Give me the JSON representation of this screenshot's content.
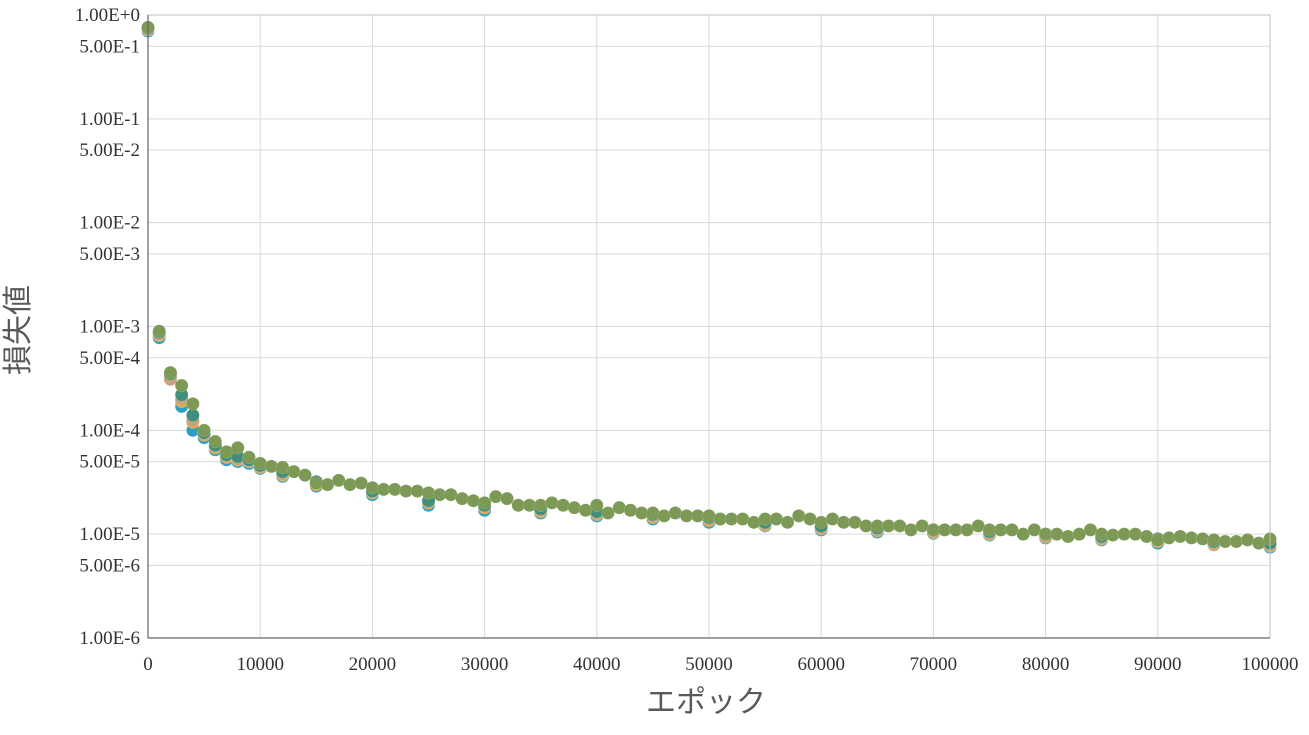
{
  "chart_data": {
    "type": "scatter",
    "title": "",
    "xlabel": "エポック",
    "ylabel": "損失値",
    "xlim": [
      0,
      100000
    ],
    "ylim": [
      1e-06,
      1
    ],
    "yscale": "log",
    "grid": true,
    "x_ticks": [
      "0",
      "10000",
      "20000",
      "30000",
      "40000",
      "50000",
      "60000",
      "70000",
      "80000",
      "90000",
      "100000"
    ],
    "x_tick_values": [
      0,
      10000,
      20000,
      30000,
      40000,
      50000,
      60000,
      70000,
      80000,
      90000,
      100000
    ],
    "y_ticks": [
      "1.00E+0",
      "5.00E-1",
      "1.00E-1",
      "5.00E-2",
      "1.00E-2",
      "5.00E-3",
      "1.00E-3",
      "5.00E-4",
      "1.00E-4",
      "5.00E-5",
      "1.00E-5",
      "5.00E-6",
      "1.00E-6"
    ],
    "y_tick_values": [
      1,
      0.5,
      0.1,
      0.05,
      0.01,
      0.005,
      0.001,
      0.0005,
      0.0001,
      5e-05,
      1e-05,
      5e-06,
      1e-06
    ],
    "series": [
      {
        "color": "#2e9fc4",
        "x": [
          0,
          1000,
          2000,
          3000,
          4000,
          5000,
          6000,
          7000,
          8000,
          9000,
          10000,
          12000,
          15000,
          20000,
          25000,
          30000,
          35000,
          40000,
          45000,
          50000,
          55000,
          60000,
          65000,
          70000,
          75000,
          80000,
          85000,
          90000,
          95000,
          100000
        ],
        "y": [
          0.7,
          0.00078,
          0.00032,
          0.00017,
          0.0001,
          8.5e-05,
          6.5e-05,
          5.2e-05,
          5e-05,
          4.8e-05,
          4.3e-05,
          3.6e-05,
          2.9e-05,
          2.4e-05,
          1.9e-05,
          1.7e-05,
          1.6e-05,
          1.5e-05,
          1.4e-05,
          1.3e-05,
          1.2e-05,
          1.1e-05,
          1.05e-05,
          1.02e-05,
          9.8e-06,
          9.2e-06,
          8.8e-06,
          8.2e-06,
          7.9e-06,
          7.5e-06
        ]
      },
      {
        "color": "#e7a43a",
        "x": [
          0,
          1000,
          2000,
          3000,
          4000,
          5000,
          6000,
          7000,
          8000,
          9000,
          10000,
          12000,
          15000,
          20000,
          25000,
          30000,
          35000,
          40000,
          45000,
          50000,
          55000,
          60000,
          65000,
          70000,
          75000,
          80000,
          85000,
          90000,
          95000,
          100000
        ],
        "y": [
          0.72,
          0.00082,
          0.00033,
          0.00019,
          0.00012,
          9e-05,
          6.8e-05,
          5.5e-05,
          5.2e-05,
          5e-05,
          4.4e-05,
          3.7e-05,
          3e-05,
          2.5e-05,
          2e-05,
          1.8e-05,
          1.65e-05,
          1.55e-05,
          1.45e-05,
          1.35e-05,
          1.22e-05,
          1.13e-05,
          1.08e-05,
          1.04e-05,
          1e-05,
          9.4e-06,
          9e-06,
          8.5e-06,
          8e-06,
          7.7e-06
        ]
      },
      {
        "color": "#c7a27a",
        "x": [
          0,
          1000,
          2000,
          3000,
          4000,
          5000,
          6000,
          7000,
          8000,
          9000,
          10000,
          12000,
          15000,
          20000,
          25000,
          30000,
          35000,
          40000,
          45000,
          50000,
          55000,
          60000,
          65000,
          70000,
          75000,
          80000,
          85000,
          90000,
          95000,
          100000
        ],
        "y": [
          0.73,
          0.00084,
          0.00031,
          0.0002,
          0.000125,
          9.2e-05,
          7e-05,
          5.7e-05,
          5.3e-05,
          5.1e-05,
          4.5e-05,
          3.8e-05,
          3.1e-05,
          2.55e-05,
          2.05e-05,
          1.85e-05,
          1.7e-05,
          1.6e-05,
          1.5e-05,
          1.4e-05,
          1.25e-05,
          1.15e-05,
          1.1e-05,
          1.06e-05,
          1.02e-05,
          9.6e-06,
          9.2e-06,
          8.7e-06,
          8.2e-06,
          7.9e-06
        ]
      },
      {
        "color": "#3f8f7a",
        "x": [
          0,
          1000,
          2000,
          3000,
          4000,
          5000,
          6000,
          7000,
          8000,
          9000,
          10000,
          12000,
          15000,
          20000,
          25000,
          30000,
          35000,
          40000,
          45000,
          50000,
          55000,
          60000,
          65000,
          70000,
          75000,
          80000,
          85000,
          90000,
          95000,
          100000
        ],
        "y": [
          0.75,
          0.00088,
          0.00035,
          0.00022,
          0.00014,
          9.5e-05,
          7.2e-05,
          5.8e-05,
          5.6e-05,
          5.2e-05,
          4.6e-05,
          4e-05,
          3.2e-05,
          2.6e-05,
          2.1e-05,
          1.9e-05,
          1.75e-05,
          1.65e-05,
          1.55e-05,
          1.45e-05,
          1.3e-05,
          1.2e-05,
          1.15e-05,
          1.1e-05,
          1.06e-05,
          1e-05,
          9.5e-06,
          9e-06,
          8.5e-06,
          8.2e-06
        ]
      },
      {
        "color": "#7c9a55",
        "x": [
          0,
          1000,
          2000,
          3000,
          4000,
          5000,
          6000,
          7000,
          8000,
          9000,
          10000,
          11000,
          12000,
          13000,
          14000,
          15000,
          16000,
          17000,
          18000,
          19000,
          20000,
          21000,
          22000,
          23000,
          24000,
          25000,
          26000,
          27000,
          28000,
          29000,
          30000,
          31000,
          32000,
          33000,
          34000,
          35000,
          36000,
          37000,
          38000,
          39000,
          40000,
          41000,
          42000,
          43000,
          44000,
          45000,
          46000,
          47000,
          48000,
          49000,
          50000,
          51000,
          52000,
          53000,
          54000,
          55000,
          56000,
          57000,
          58000,
          59000,
          60000,
          61000,
          62000,
          63000,
          64000,
          65000,
          66000,
          67000,
          68000,
          69000,
          70000,
          71000,
          72000,
          73000,
          74000,
          75000,
          76000,
          77000,
          78000,
          79000,
          80000,
          81000,
          82000,
          83000,
          84000,
          85000,
          86000,
          87000,
          88000,
          89000,
          90000,
          91000,
          92000,
          93000,
          94000,
          95000,
          96000,
          97000,
          98000,
          99000,
          100000
        ],
        "y": [
          0.76,
          0.0009,
          0.00036,
          0.00027,
          0.00018,
          0.0001,
          7.8e-05,
          6.2e-05,
          6.8e-05,
          5.5e-05,
          4.8e-05,
          4.5e-05,
          4.4e-05,
          4e-05,
          3.7e-05,
          3.1e-05,
          3e-05,
          3.3e-05,
          3e-05,
          3.1e-05,
          2.8e-05,
          2.7e-05,
          2.7e-05,
          2.6e-05,
          2.6e-05,
          2.5e-05,
          2.4e-05,
          2.4e-05,
          2.2e-05,
          2.1e-05,
          2e-05,
          2.3e-05,
          2.2e-05,
          1.9e-05,
          1.9e-05,
          1.9e-05,
          2e-05,
          1.9e-05,
          1.8e-05,
          1.7e-05,
          1.9e-05,
          1.6e-05,
          1.8e-05,
          1.7e-05,
          1.6e-05,
          1.6e-05,
          1.5e-05,
          1.6e-05,
          1.5e-05,
          1.5e-05,
          1.5e-05,
          1.4e-05,
          1.4e-05,
          1.4e-05,
          1.3e-05,
          1.4e-05,
          1.4e-05,
          1.3e-05,
          1.5e-05,
          1.4e-05,
          1.3e-05,
          1.4e-05,
          1.3e-05,
          1.3e-05,
          1.2e-05,
          1.2e-05,
          1.2e-05,
          1.2e-05,
          1.1e-05,
          1.2e-05,
          1.1e-05,
          1.1e-05,
          1.1e-05,
          1.1e-05,
          1.2e-05,
          1.1e-05,
          1.1e-05,
          1.1e-05,
          1e-05,
          1.1e-05,
          1e-05,
          1e-05,
          9.5e-06,
          1e-05,
          1.1e-05,
          1e-05,
          9.8e-06,
          1e-05,
          1e-05,
          9.5e-06,
          8.8e-06,
          9.2e-06,
          9.5e-06,
          9.2e-06,
          9e-06,
          8.8e-06,
          8.5e-06,
          8.5e-06,
          8.8e-06,
          8.2e-06,
          9e-06
        ]
      }
    ]
  }
}
